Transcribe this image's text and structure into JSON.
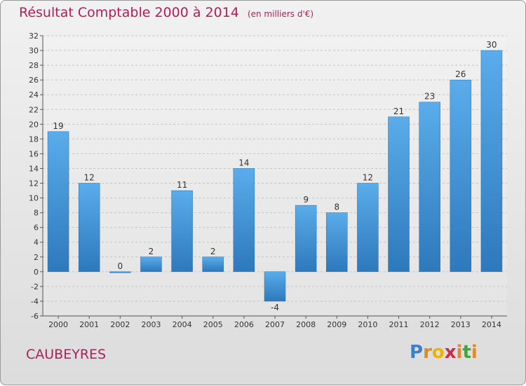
{
  "chart_data": {
    "type": "bar",
    "title": "Résultat Comptable 2000 à 2014",
    "subtitle": "(en milliers d'€)",
    "categories": [
      "2000",
      "2001",
      "2002",
      "2003",
      "2004",
      "2005",
      "2006",
      "2007",
      "2008",
      "2009",
      "2010",
      "2011",
      "2012",
      "2013",
      "2014"
    ],
    "values": [
      19,
      12,
      0,
      2,
      11,
      2,
      14,
      -4,
      9,
      8,
      12,
      21,
      23,
      26,
      30
    ],
    "ylim": [
      -6,
      32
    ],
    "yticks": [
      -6,
      -4,
      -2,
      0,
      2,
      4,
      6,
      8,
      10,
      12,
      14,
      16,
      18,
      20,
      22,
      24,
      26,
      28,
      30,
      32
    ],
    "xlabel": "",
    "ylabel": "",
    "grid": true,
    "bar_color": "#3d8fd1"
  },
  "location": "CAUBEYRES",
  "logo": {
    "letters": [
      "P",
      "r",
      "o",
      "x",
      "i",
      "t",
      "i"
    ],
    "colors": [
      "#3d7fc9",
      "#e08a1e",
      "#f0b400",
      "#d0284b",
      "#e8852a",
      "#44a33c",
      "#e8852a"
    ]
  }
}
